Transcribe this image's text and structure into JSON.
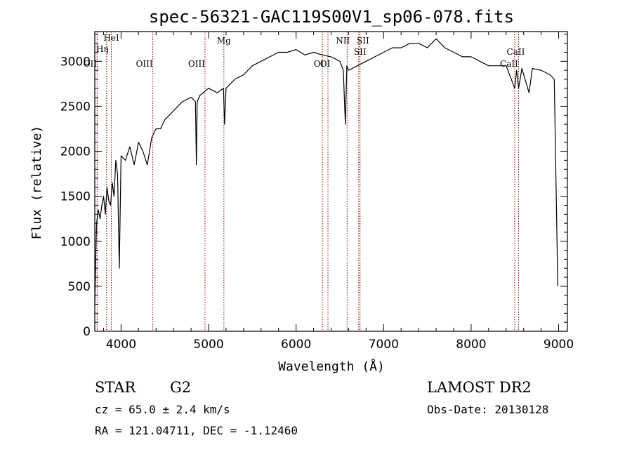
{
  "chart_data": {
    "type": "line",
    "title": "spec-56321-GAC119S00V1_sp06-078.fits",
    "xlabel": "Wavelength (Å)",
    "ylabel": "Flux (relative)",
    "xlim": [
      3700,
      9100
    ],
    "ylim": [
      0,
      3330
    ],
    "xticks": [
      4000,
      5000,
      6000,
      7000,
      8000,
      9000
    ],
    "yticks": [
      0,
      500,
      1000,
      1500,
      2000,
      2500,
      3000
    ],
    "grid": false,
    "series": [
      {
        "x": [
          3700,
          3720,
          3740,
          3760,
          3780,
          3800,
          3820,
          3840,
          3860,
          3880,
          3900,
          3920,
          3940,
          3960,
          3980,
          4000,
          4050,
          4100,
          4150,
          4200,
          4250,
          4300,
          4350,
          4400,
          4450,
          4500,
          4600,
          4700,
          4800,
          4850,
          4861,
          4870,
          4900,
          5000,
          5100,
          5170,
          5183,
          5200,
          5300,
          5400,
          5500,
          5600,
          5700,
          5800,
          5900,
          6000,
          6100,
          6200,
          6300,
          6400,
          6500,
          6540,
          6563,
          6580,
          6600,
          6700,
          6800,
          6900,
          7000,
          7100,
          7200,
          7300,
          7400,
          7500,
          7600,
          7700,
          7800,
          7900,
          8000,
          8100,
          8200,
          8300,
          8400,
          8498,
          8520,
          8542,
          8580,
          8662,
          8700,
          8800,
          8900,
          8950,
          8990
        ],
        "y": [
          300,
          1200,
          1350,
          1250,
          1400,
          1500,
          1300,
          1600,
          1450,
          1400,
          1650,
          1500,
          1900,
          1750,
          700,
          1950,
          1900,
          2050,
          1850,
          2100,
          2000,
          1850,
          2150,
          2250,
          2250,
          2350,
          2450,
          2550,
          2600,
          2550,
          1850,
          2550,
          2620,
          2700,
          2650,
          2700,
          2300,
          2700,
          2800,
          2850,
          2950,
          3000,
          3050,
          3100,
          3100,
          3130,
          3070,
          3100,
          3070,
          3050,
          3000,
          2900,
          2300,
          2950,
          2900,
          2950,
          3000,
          3050,
          3100,
          3150,
          3150,
          3200,
          3200,
          3150,
          3250,
          3150,
          3100,
          3050,
          3050,
          3000,
          2950,
          2950,
          2950,
          2700,
          2900,
          2700,
          2920,
          2650,
          2920,
          2900,
          2850,
          2800,
          500
        ]
      }
    ],
    "line_markers": [
      {
        "label": "HeI",
        "x": 3889
      },
      {
        "label": "Hη",
        "x": 3835
      },
      {
        "label": "OII",
        "x": 3727
      },
      {
        "label": "OIII",
        "x": 4363
      },
      {
        "label": "OIII",
        "x": 4959
      },
      {
        "label": "Mg",
        "x": 5175
      },
      {
        "label": "OI",
        "x": 6300
      },
      {
        "label": "OI",
        "x": 6364
      },
      {
        "label": "NII",
        "x": 6583
      },
      {
        "label": "SII",
        "x": 6716
      },
      {
        "label": "SII",
        "x": 6731
      },
      {
        "label": "CaII",
        "x": 8542
      },
      {
        "label": "CaII",
        "x": 8498
      }
    ],
    "colors": {
      "spectrum": "#000000",
      "markers": "#8b0000"
    }
  },
  "info": {
    "class_label": "STAR",
    "subclass_label": "G2",
    "survey": "LAMOST DR2",
    "cz": "cz = 65.0 ± 2.4 km/s",
    "obs_date": "Obs-Date: 20130128",
    "coords": "RA = 121.04711, DEC =  -1.12460"
  }
}
